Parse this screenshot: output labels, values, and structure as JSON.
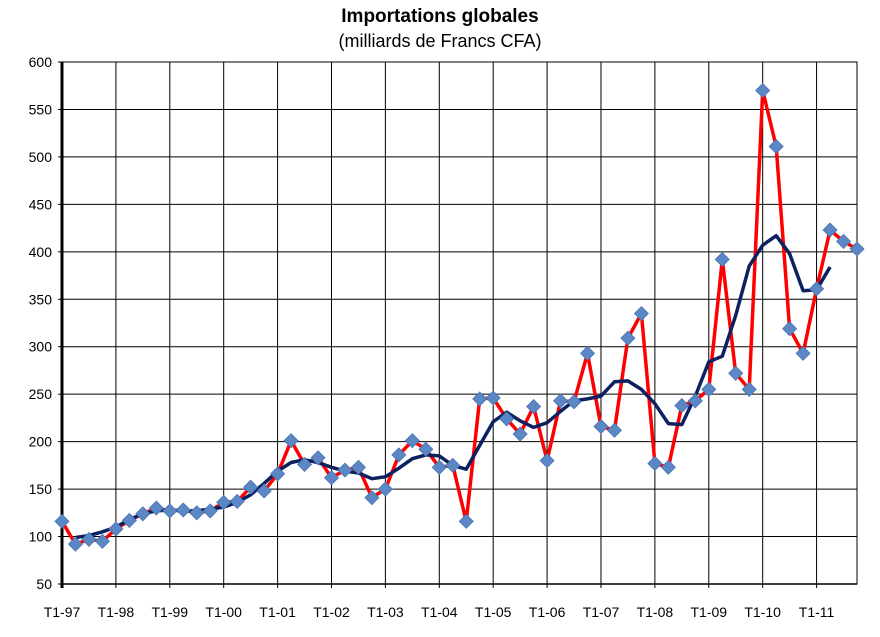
{
  "chart_data": {
    "type": "line",
    "title": "Importations globales",
    "subtitle": "(milliards de Francs CFA)",
    "xlabel": "",
    "ylabel": "",
    "ylim": [
      50,
      600
    ],
    "y_ticks": [
      50,
      100,
      150,
      200,
      250,
      300,
      350,
      400,
      450,
      500,
      550,
      600
    ],
    "x_tick_labels": [
      "T1-97",
      "T1-98",
      "T1-99",
      "T1-00",
      "T1-01",
      "T1-02",
      "T1-03",
      "T1-04",
      "T1-05",
      "T1-06",
      "T1-07",
      "T1-08",
      "T1-09",
      "T1-10",
      "T1-11"
    ],
    "grid": true,
    "legend": "none",
    "series": [
      {
        "color": "#ff0000",
        "marker_color": "#5b87c5",
        "marker": "diamond",
        "values": [
          116,
          92,
          97,
          95,
          108,
          117,
          124,
          130,
          127,
          128,
          125,
          127,
          136,
          137,
          152,
          148,
          166,
          201,
          176,
          183,
          162,
          170,
          173,
          141,
          150,
          186,
          201,
          192,
          173,
          175,
          116,
          245,
          246,
          224,
          208,
          237,
          180,
          243,
          242,
          293,
          216,
          212,
          309,
          335,
          177,
          173,
          238,
          243,
          255,
          392,
          272,
          255,
          570,
          511,
          319,
          293,
          361,
          423,
          411,
          403
        ]
      },
      {
        "color": "#0d2160",
        "values": [
          null,
          99,
          101,
          105,
          110,
          118,
          124,
          127,
          128,
          127,
          127,
          129,
          131,
          136,
          144,
          156,
          169,
          178,
          181,
          178,
          173,
          169,
          167,
          161,
          163,
          172,
          182,
          186,
          185,
          175,
          171,
          196,
          221,
          231,
          222,
          215,
          220,
          232,
          243,
          245,
          248,
          263,
          264,
          255,
          240,
          219,
          218,
          248,
          284,
          290,
          333,
          385,
          407,
          417,
          398,
          359,
          360,
          384,
          null,
          null
        ]
      }
    ]
  }
}
